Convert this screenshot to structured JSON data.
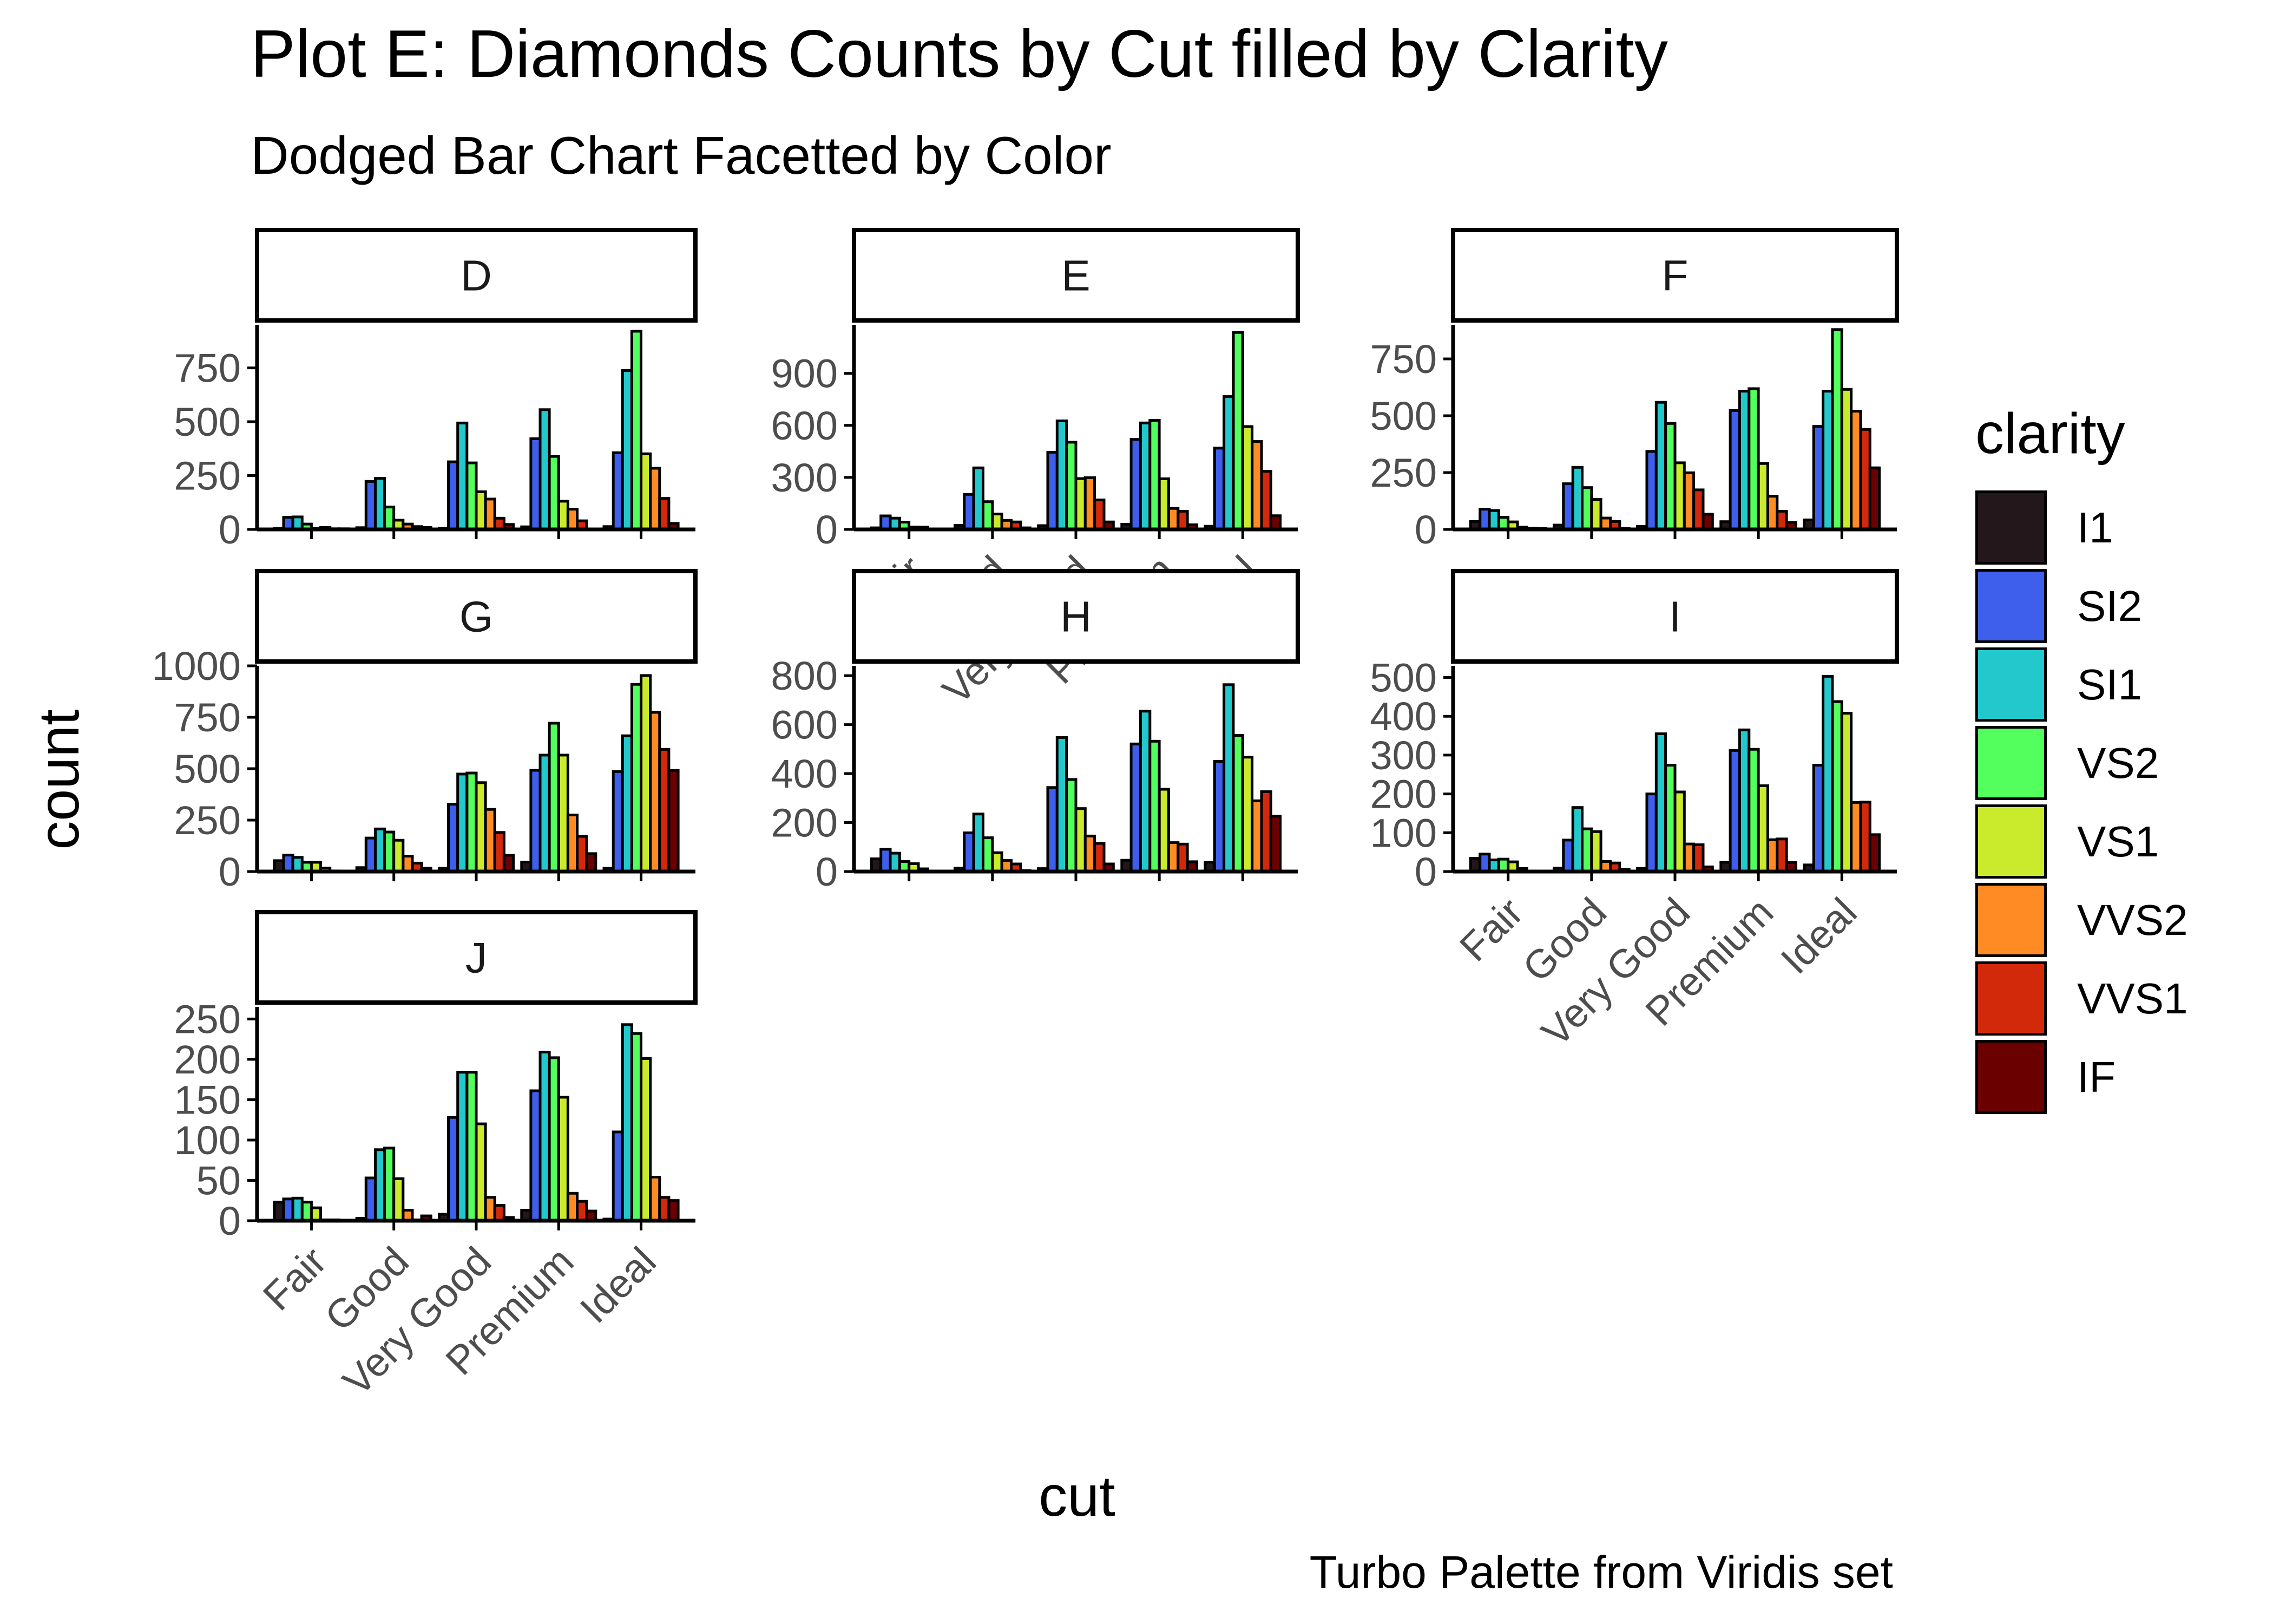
{
  "title": "Plot E: Diamonds Counts by Cut filled by Clarity",
  "subtitle": "Dodged Bar Chart Facetted by Color",
  "caption": "Turbo Palette from Viridis set",
  "legend": {
    "title": "clarity"
  },
  "chart_data": {
    "type": "bar",
    "variant": "dodged, facetted by color",
    "xlabel": "cut",
    "ylabel": "count",
    "categories": [
      "Fair",
      "Good",
      "Very Good",
      "Premium",
      "Ideal"
    ],
    "series_names": [
      "I1",
      "SI2",
      "SI1",
      "VS2",
      "VS1",
      "VVS2",
      "VVS1",
      "IF"
    ],
    "colors": [
      "#23171B",
      "#3D5FEB",
      "#23C8CC",
      "#52FF5C",
      "#C9EB2C",
      "#FF8B25",
      "#D2290B",
      "#6B0000"
    ],
    "grid": false,
    "legend_position": "right",
    "facets": [
      {
        "label": "D",
        "ylim": [
          0,
          950
        ],
        "yticks": [
          0,
          250,
          500,
          750
        ],
        "values": [
          [
            4,
            56,
            58,
            25,
            5,
            9,
            3,
            3
          ],
          [
            8,
            223,
            237,
            104,
            43,
            25,
            13,
            9
          ],
          [
            5,
            314,
            494,
            309,
            175,
            141,
            52,
            23
          ],
          [
            12,
            421,
            556,
            339,
            131,
            94,
            40,
            1
          ],
          [
            13,
            356,
            738,
            920,
            351,
            284,
            144,
            28
          ]
        ]
      },
      {
        "label": "E",
        "ylim": [
          0,
          1180
        ],
        "yticks": [
          0,
          300,
          600,
          900
        ],
        "values": [
          [
            9,
            78,
            65,
            42,
            14,
            13,
            3,
            0
          ],
          [
            23,
            202,
            355,
            160,
            89,
            52,
            43,
            9
          ],
          [
            22,
            445,
            626,
            503,
            293,
            298,
            170,
            43
          ],
          [
            30,
            519,
            614,
            629,
            292,
            121,
            105,
            27
          ],
          [
            18,
            469,
            766,
            1136,
            593,
            507,
            335,
            79
          ]
        ]
      },
      {
        "label": "F",
        "ylim": [
          0,
          900
        ],
        "yticks": [
          0,
          250,
          500,
          750
        ],
        "values": [
          [
            35,
            89,
            83,
            53,
            33,
            10,
            5,
            4
          ],
          [
            19,
            201,
            273,
            184,
            132,
            50,
            35,
            4
          ],
          [
            13,
            343,
            559,
            466,
            293,
            249,
            174,
            67
          ],
          [
            34,
            523,
            608,
            619,
            290,
            146,
            80,
            31
          ],
          [
            42,
            453,
            608,
            879,
            616,
            520,
            440,
            271
          ]
        ]
      },
      {
        "label": "G",
        "ylim": [
          0,
          1000
        ],
        "yticks": [
          0,
          250,
          500,
          750,
          1000
        ],
        "values": [
          [
            53,
            80,
            69,
            45,
            45,
            17,
            3,
            2
          ],
          [
            19,
            163,
            207,
            192,
            152,
            75,
            41,
            16
          ],
          [
            16,
            327,
            474,
            479,
            432,
            302,
            190,
            79
          ],
          [
            46,
            492,
            566,
            721,
            566,
            275,
            171,
            87
          ],
          [
            16,
            486,
            660,
            910,
            953,
            774,
            594,
            491
          ]
        ]
      },
      {
        "label": "H",
        "ylim": [
          0,
          840
        ],
        "yticks": [
          0,
          200,
          400,
          600,
          800
        ],
        "values": [
          [
            52,
            91,
            75,
            41,
            32,
            11,
            1,
            0
          ],
          [
            14,
            158,
            235,
            138,
            77,
            45,
            31,
            4
          ],
          [
            12,
            343,
            547,
            376,
            257,
            145,
            115,
            31
          ],
          [
            46,
            521,
            655,
            532,
            336,
            118,
            112,
            40
          ],
          [
            38,
            450,
            763,
            556,
            467,
            289,
            326,
            226
          ]
        ]
      },
      {
        "label": "I",
        "ylim": [
          0,
          530
        ],
        "yticks": [
          0,
          100,
          200,
          300,
          400,
          500
        ],
        "values": [
          [
            34,
            45,
            30,
            32,
            25,
            8,
            1,
            0
          ],
          [
            9,
            81,
            165,
            110,
            103,
            26,
            22,
            6
          ],
          [
            8,
            200,
            355,
            274,
            205,
            71,
            69,
            12
          ],
          [
            24,
            312,
            365,
            315,
            221,
            82,
            84,
            23
          ],
          [
            17,
            274,
            503,
            438,
            408,
            178,
            179,
            95
          ]
        ]
      },
      {
        "label": "J",
        "ylim": [
          0,
          265
        ],
        "yticks": [
          0,
          50,
          100,
          150,
          200,
          250
        ],
        "values": [
          [
            23,
            27,
            28,
            23,
            16,
            1,
            1,
            0
          ],
          [
            3,
            53,
            88,
            90,
            52,
            13,
            1,
            6
          ],
          [
            8,
            128,
            184,
            184,
            120,
            29,
            19,
            4
          ],
          [
            13,
            161,
            209,
            202,
            153,
            34,
            24,
            12
          ],
          [
            2,
            110,
            243,
            232,
            201,
            54,
            29,
            25
          ]
        ]
      }
    ]
  }
}
